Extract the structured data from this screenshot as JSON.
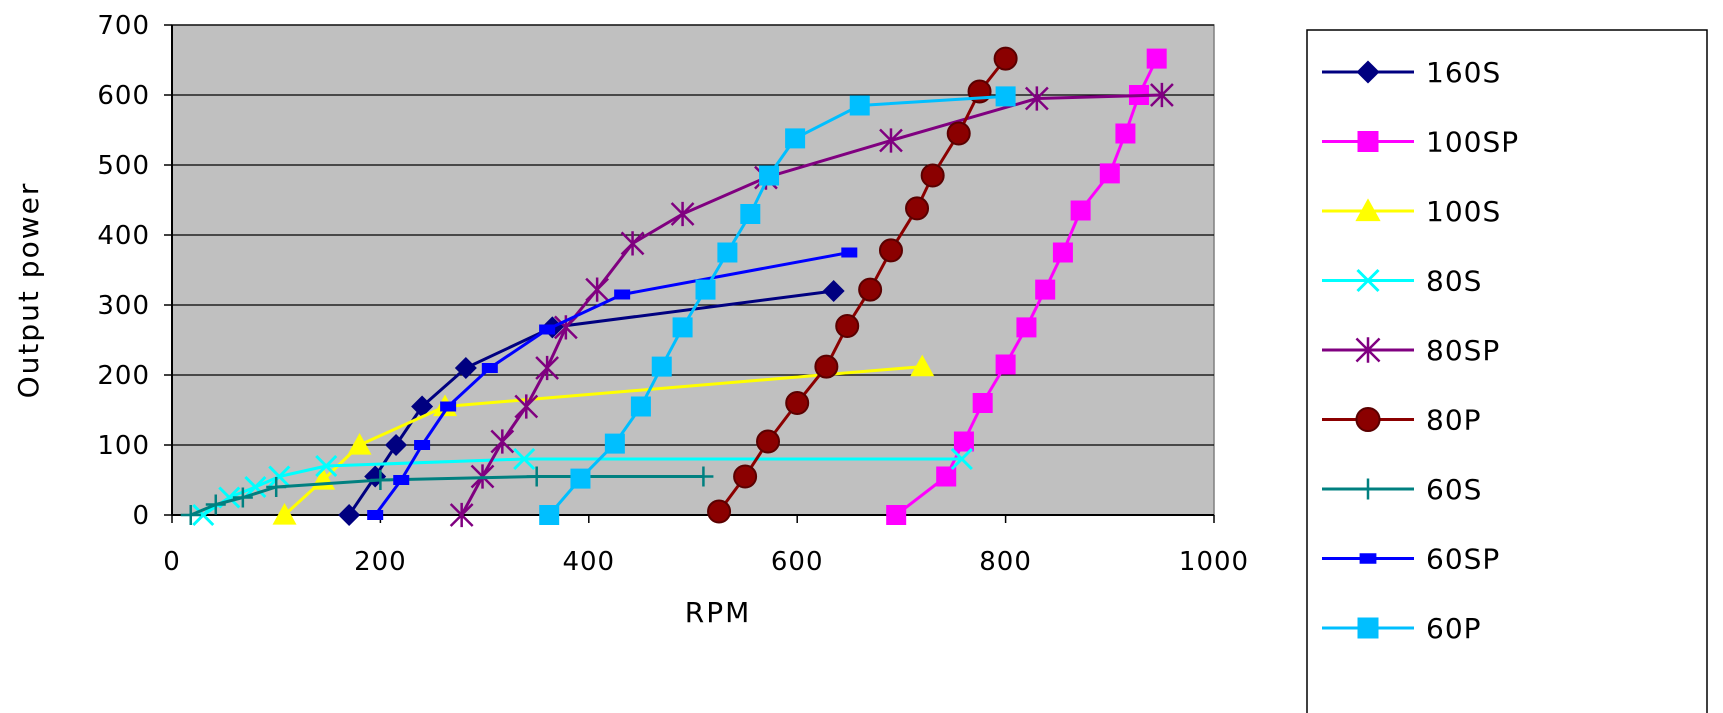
{
  "chart_data": {
    "type": "line",
    "title": "",
    "xlabel": "RPM",
    "ylabel": "Output power",
    "xlim": [
      0,
      1000
    ],
    "ylim": [
      0,
      700
    ],
    "xticks": [
      "0",
      "200",
      "400",
      "600",
      "800",
      "1000"
    ],
    "yticks": [
      "0",
      "100",
      "200",
      "300",
      "400",
      "500",
      "600",
      "700"
    ],
    "grid": "horizontal",
    "plot_background": "#c0c0c0",
    "legend_position": "right",
    "series": [
      {
        "name": "160S",
        "color": "#000080",
        "marker": "diamond",
        "points": [
          [
            170,
            0
          ],
          [
            195,
            55
          ],
          [
            215,
            100
          ],
          [
            240,
            155
          ],
          [
            282,
            210
          ],
          [
            365,
            268
          ],
          [
            635,
            320
          ]
        ]
      },
      {
        "name": "100SP",
        "color": "#ff00ff",
        "marker": "square",
        "points": [
          [
            695,
            0
          ],
          [
            743,
            55
          ],
          [
            760,
            105
          ],
          [
            778,
            160
          ],
          [
            800,
            215
          ],
          [
            820,
            268
          ],
          [
            838,
            322
          ],
          [
            855,
            375
          ],
          [
            872,
            435
          ],
          [
            900,
            488
          ],
          [
            915,
            545
          ],
          [
            928,
            600
          ],
          [
            945,
            652
          ]
        ]
      },
      {
        "name": "100S",
        "color": "#ffff00",
        "marker": "triangle",
        "points": [
          [
            108,
            0
          ],
          [
            145,
            50
          ],
          [
            180,
            100
          ],
          [
            262,
            155
          ],
          [
            720,
            212
          ]
        ]
      },
      {
        "name": "80S",
        "color": "#00ffff",
        "marker": "x",
        "points": [
          [
            30,
            0
          ],
          [
            55,
            25
          ],
          [
            80,
            40
          ],
          [
            103,
            55
          ],
          [
            148,
            70
          ],
          [
            338,
            80
          ],
          [
            758,
            80
          ]
        ]
      },
      {
        "name": "80SP",
        "color": "#800080",
        "marker": "asterisk",
        "points": [
          [
            278,
            0
          ],
          [
            298,
            55
          ],
          [
            317,
            105
          ],
          [
            340,
            155
          ],
          [
            360,
            210
          ],
          [
            378,
            268
          ],
          [
            408,
            322
          ],
          [
            442,
            388
          ],
          [
            490,
            430
          ],
          [
            570,
            482
          ],
          [
            690,
            535
          ],
          [
            830,
            595
          ],
          [
            950,
            600
          ]
        ]
      },
      {
        "name": "80P",
        "color": "#8b0000",
        "marker": "circle",
        "points": [
          [
            525,
            5
          ],
          [
            550,
            55
          ],
          [
            572,
            105
          ],
          [
            600,
            160
          ],
          [
            628,
            212
          ],
          [
            648,
            270
          ],
          [
            670,
            322
          ],
          [
            690,
            378
          ],
          [
            715,
            438
          ],
          [
            730,
            485
          ],
          [
            755,
            545
          ],
          [
            775,
            605
          ],
          [
            800,
            652
          ]
        ]
      },
      {
        "name": "60S",
        "color": "#008080",
        "marker": "plus",
        "points": [
          [
            18,
            0
          ],
          [
            42,
            15
          ],
          [
            68,
            25
          ],
          [
            100,
            40
          ],
          [
            200,
            50
          ],
          [
            350,
            55
          ],
          [
            510,
            55
          ]
        ]
      },
      {
        "name": "60SP",
        "color": "#0000ff",
        "marker": "smallsquare",
        "points": [
          [
            195,
            0
          ],
          [
            220,
            50
          ],
          [
            240,
            100
          ],
          [
            265,
            155
          ],
          [
            305,
            210
          ],
          [
            360,
            265
          ],
          [
            432,
            315
          ],
          [
            650,
            375
          ]
        ]
      },
      {
        "name": "60P",
        "color": "#00bfff",
        "marker": "square",
        "points": [
          [
            362,
            0
          ],
          [
            392,
            52
          ],
          [
            425,
            102
          ],
          [
            450,
            155
          ],
          [
            470,
            212
          ],
          [
            490,
            268
          ],
          [
            512,
            322
          ],
          [
            533,
            375
          ],
          [
            555,
            430
          ],
          [
            573,
            485
          ],
          [
            598,
            538
          ],
          [
            660,
            585
          ],
          [
            800,
            598
          ]
        ]
      }
    ]
  }
}
